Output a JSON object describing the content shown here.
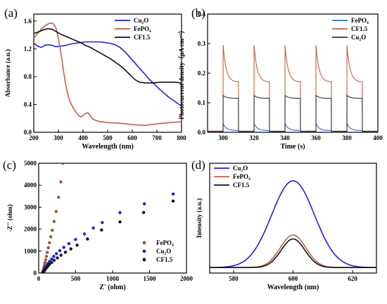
{
  "chart_data": [
    {
      "type": "line",
      "panel_label": "(a)",
      "xlabel": "Wavelength (nm)",
      "ylabel": "Absorbance (a.u.)",
      "xlim": [
        200,
        800
      ],
      "ylim": [
        0.0,
        1.7
      ],
      "xticks": [
        200,
        300,
        400,
        500,
        600,
        700,
        800
      ],
      "yticks": [
        0.0,
        0.4,
        0.8,
        1.2,
        1.6
      ],
      "ytick_labels": [
        "0.0",
        "0.4",
        "0.8",
        "1.2",
        "1.6"
      ],
      "legend": "top-right",
      "series": [
        {
          "name": "Cu₂O",
          "color": "#1f1fd6",
          "x": [
            200,
            215,
            230,
            245,
            260,
            275,
            290,
            310,
            330,
            350,
            370,
            390,
            410,
            430,
            450,
            470,
            490,
            510,
            530,
            550,
            570,
            590,
            610,
            630,
            650,
            670,
            690,
            710,
            730,
            750,
            770,
            790,
            800
          ],
          "y": [
            1.28,
            1.24,
            1.22,
            1.25,
            1.26,
            1.25,
            1.23,
            1.24,
            1.25,
            1.27,
            1.28,
            1.29,
            1.3,
            1.3,
            1.3,
            1.3,
            1.29,
            1.28,
            1.26,
            1.22,
            1.16,
            1.08,
            1.0,
            0.92,
            0.84,
            0.76,
            0.69,
            0.62,
            0.56,
            0.5,
            0.45,
            0.4,
            0.38
          ]
        },
        {
          "name": "FePO₄",
          "color": "#c0604a",
          "x": [
            200,
            215,
            230,
            245,
            260,
            270,
            280,
            290,
            300,
            310,
            320,
            330,
            340,
            350,
            360,
            370,
            380,
            390,
            400,
            410,
            420,
            430,
            440,
            460,
            480,
            500,
            550,
            600,
            650,
            700,
            750,
            800
          ],
          "y": [
            1.35,
            1.42,
            1.48,
            1.53,
            1.56,
            1.57,
            1.56,
            1.5,
            1.35,
            1.15,
            0.9,
            0.68,
            0.52,
            0.42,
            0.35,
            0.3,
            0.25,
            0.22,
            0.24,
            0.27,
            0.28,
            0.24,
            0.19,
            0.16,
            0.15,
            0.14,
            0.13,
            0.11,
            0.1,
            0.12,
            0.14,
            0.15
          ]
        },
        {
          "name": "CF1.5",
          "color": "#111111",
          "x": [
            200,
            215,
            230,
            245,
            260,
            275,
            290,
            310,
            330,
            350,
            370,
            390,
            410,
            430,
            450,
            470,
            490,
            510,
            530,
            550,
            570,
            590,
            610,
            630,
            650,
            670,
            690,
            710,
            730,
            750,
            770,
            800
          ],
          "y": [
            1.42,
            1.44,
            1.46,
            1.48,
            1.49,
            1.48,
            1.45,
            1.41,
            1.38,
            1.35,
            1.32,
            1.29,
            1.25,
            1.22,
            1.18,
            1.14,
            1.1,
            1.06,
            1.01,
            0.96,
            0.9,
            0.83,
            0.76,
            0.72,
            0.71,
            0.71,
            0.71,
            0.72,
            0.72,
            0.72,
            0.72,
            0.71
          ]
        }
      ]
    },
    {
      "type": "line",
      "panel_label": "(b)",
      "xlabel": "Time (s)",
      "ylabel": "Photocurrent density（μA cm⁻²）",
      "xlim": [
        290,
        400
      ],
      "ylim": [
        0.0,
        0.4
      ],
      "xticks": [
        300,
        320,
        340,
        360,
        380,
        400
      ],
      "yticks": [
        0.0,
        0.1,
        0.2,
        0.3,
        0.4
      ],
      "ytick_labels": [
        "0.0",
        "0.1",
        "0.2",
        "0.3",
        "0.4"
      ],
      "legend": "top-right",
      "on_times": [
        300,
        320,
        340,
        360,
        380
      ],
      "on_duration": 10,
      "series": [
        {
          "name": "FePO₄",
          "color": "#2a6fd6",
          "dark": 0.003,
          "peak": 0.03,
          "plateau": 0.006
        },
        {
          "name": "CF1.5",
          "color": "#c0604a",
          "dark": 0.004,
          "peak": 0.295,
          "plateau": 0.17
        },
        {
          "name": "Cu₂O",
          "color": "#333333",
          "dark": 0.003,
          "peak": 0.125,
          "plateau": 0.115
        }
      ]
    },
    {
      "type": "scatter",
      "panel_label": "(c)",
      "xlabel": "Z' (ohm)",
      "ylabel": "-Z'' (ohm)",
      "xlim": [
        0,
        2000
      ],
      "ylim": [
        0,
        5000
      ],
      "xticks": [
        0,
        500,
        1000,
        1500,
        2000
      ],
      "yticks": [
        0,
        1000,
        2000,
        3000,
        4000,
        5000
      ],
      "legend": "bottom-right",
      "series": [
        {
          "name": "FePO₄",
          "color": "#a0503a",
          "x": [
            52,
            60,
            68,
            76,
            84,
            94,
            104,
            116,
            130,
            146,
            164,
            184,
            208,
            236,
            270,
            300,
            325
          ],
          "y": [
            40,
            130,
            230,
            340,
            460,
            600,
            760,
            940,
            1150,
            1380,
            1650,
            1950,
            2350,
            2800,
            3450,
            4150,
            5000
          ]
        },
        {
          "name": "Cu₂O",
          "color": "#1f1fd6",
          "x": [
            55,
            65,
            78,
            92,
            108,
            126,
            148,
            175,
            205,
            240,
            285,
            340,
            410,
            500,
            620,
            740,
            860,
            1100,
            1430,
            1820
          ],
          "y": [
            30,
            90,
            170,
            250,
            340,
            430,
            530,
            640,
            760,
            880,
            1020,
            1170,
            1340,
            1530,
            1780,
            2050,
            2300,
            2750,
            3150,
            3600
          ]
        },
        {
          "name": "CF1.5",
          "color": "#111111",
          "x": [
            58,
            70,
            85,
            102,
            122,
            146,
            175,
            210,
            252,
            302,
            362,
            435,
            520,
            660,
            850,
            1100,
            1420,
            1820
          ],
          "y": [
            20,
            70,
            140,
            220,
            300,
            390,
            480,
            580,
            690,
            810,
            950,
            1100,
            1270,
            1550,
            1960,
            2330,
            2760,
            3280
          ]
        }
      ]
    },
    {
      "type": "line",
      "panel_label": "(d)",
      "xlabel": "Wavelength (nm)",
      "ylabel": "Intensity (a.u.)",
      "xlim": [
        572,
        628
      ],
      "ylim": [
        0,
        1.0
      ],
      "xticks": [
        580,
        600,
        620
      ],
      "legend": "top-left",
      "series": [
        {
          "name": "Cu₂O",
          "color": "#1f1fd6",
          "center": 600,
          "sigma": 7.2,
          "amp": 1.0,
          "base": 0.0
        },
        {
          "name": "FePO₄",
          "color": "#c0604a",
          "center": 600,
          "sigma": 4.3,
          "amp": 0.375,
          "base": 0.0
        },
        {
          "name": "CF1.5",
          "color": "#111111",
          "center": 600,
          "sigma": 4.0,
          "amp": 0.33,
          "base": 0.0
        }
      ]
    }
  ]
}
